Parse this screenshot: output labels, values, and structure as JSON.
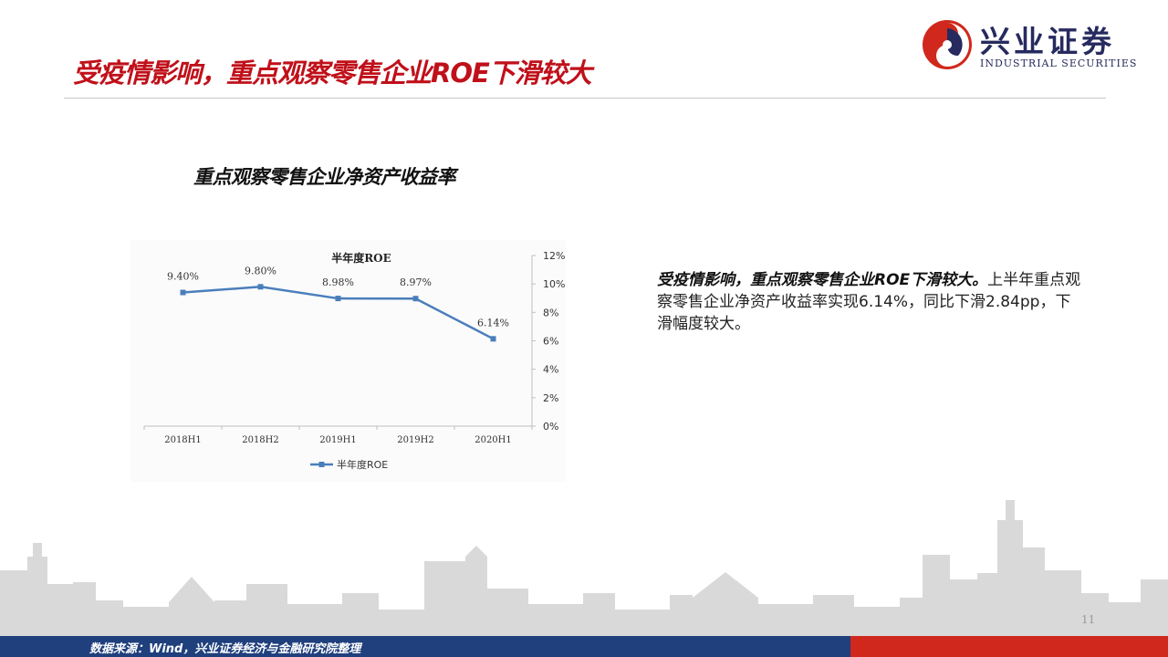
{
  "slide": {
    "title": "受疫情影响，重点观察零售企业ROE下滑较大",
    "page_number": "11"
  },
  "logo": {
    "name_cn": "兴业证券",
    "name_en": "INDUSTRIAL SECURITIES"
  },
  "chart_heading": "重点观察零售企业净资产收益率",
  "side_text": {
    "lead": "受疫情影响，重点观察零售企业ROE下滑较大。",
    "body": "上半年重点观察零售企业净资产收益率实现6.14%，同比下滑2.84pp，下滑幅度较大。"
  },
  "footer": {
    "source": "数据来源：Wind，兴业证券经济与金融研究院整理"
  },
  "colors": {
    "title_red": "#c0101a",
    "series_blue": "#4a7ebb",
    "footer_blue": "#1f3f7d",
    "footer_red": "#d0281c"
  },
  "chart_data": {
    "type": "line",
    "title": "半年度ROE",
    "categories": [
      "2018H1",
      "2018H2",
      "2019H1",
      "2019H2",
      "2020H1"
    ],
    "series": [
      {
        "name": "半年度ROE",
        "values": [
          9.4,
          9.8,
          8.98,
          8.97,
          6.14
        ]
      }
    ],
    "data_labels": [
      "9.40%",
      "9.80%",
      "8.98%",
      "8.97%",
      "6.14%"
    ],
    "y_ticks": [
      "0%",
      "2%",
      "4%",
      "6%",
      "8%",
      "10%",
      "12%"
    ],
    "ylim": [
      0,
      12
    ],
    "y_axis_side": "right",
    "grid": false,
    "legend": "bottom"
  }
}
